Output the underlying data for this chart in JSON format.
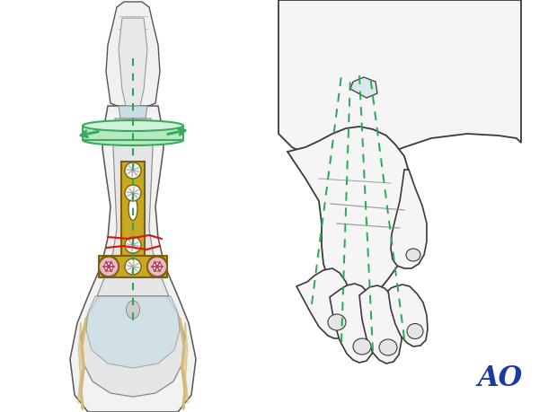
{
  "bg_color": "#ffffff",
  "fig_width": 6.2,
  "fig_height": 4.59,
  "dpi": 100,
  "ao_text": "AO",
  "ao_color": "#1a3a9e",
  "ao_fontsize": 22,
  "green_arrow_color": "#3aaa60",
  "green_arrow_fill": "#b8e8c0",
  "bone_outline_color": "#555555",
  "cartilage_fill": "#c8dde4",
  "plate_color": "#c8a822",
  "plate_outline": "#7a6010",
  "screw_hole_color": "#ffffff",
  "screw_head_color": "#d44070",
  "red_fracture_color": "#dd1111",
  "dashed_green": "#2aaa50",
  "tendon_color": "#d4b878"
}
